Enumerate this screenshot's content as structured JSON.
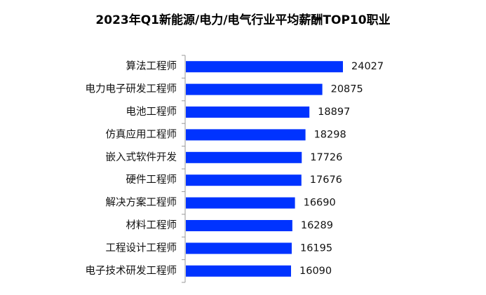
{
  "chart_data": {
    "type": "bar",
    "orientation": "horizontal",
    "title": "2023年Q1新能源/电力/电气行业平均薪酬TOP10职业",
    "categories": [
      "算法工程师",
      "电力电子研发工程师",
      "电池工程师",
      "仿真应用工程师",
      "嵌入式软件开发",
      "硬件工程师",
      "解决方案工程师",
      "材料工程师",
      "工程设计工程师",
      "电子技术研发工程师"
    ],
    "values": [
      24027,
      20875,
      18897,
      18298,
      17726,
      17676,
      16690,
      16289,
      16195,
      16090
    ],
    "value_labels": [
      "24027",
      "20875",
      "18897",
      "18298",
      "17726",
      "17676",
      "16690",
      "16289",
      "16195",
      "16090"
    ],
    "xlim": [
      0,
      24027
    ],
    "bar_color": "#0033ff",
    "grid": false,
    "legend": "none"
  }
}
